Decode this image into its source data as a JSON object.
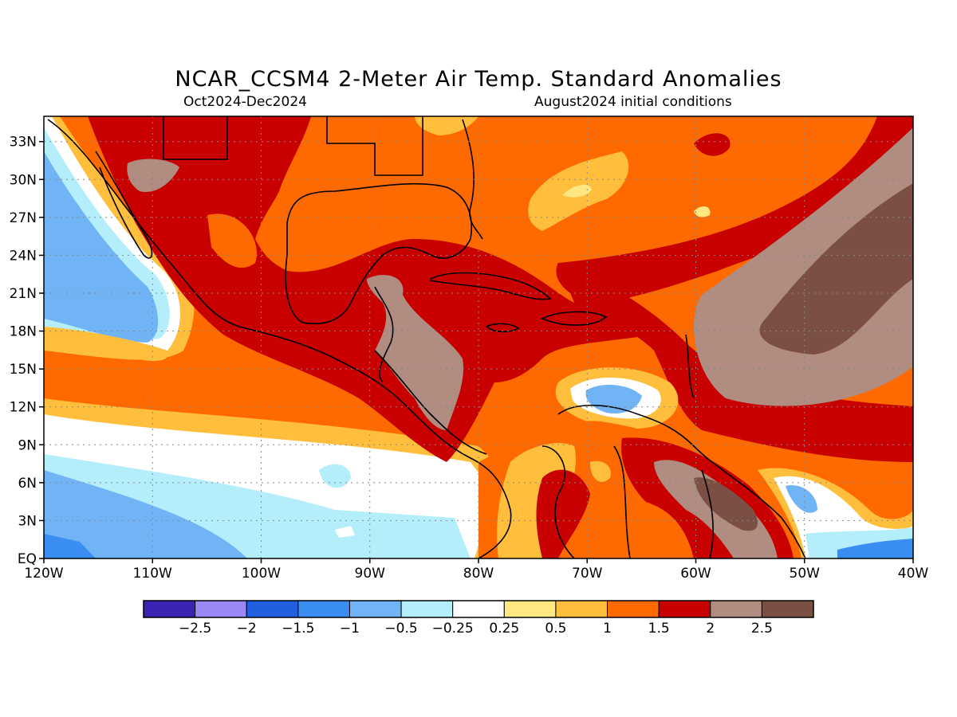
{
  "title": "NCAR_CCSM4 2-Meter Air Temp. Standard Anomalies",
  "subtitle_left": "Oct2024-Dec2024",
  "subtitle_right": "August2024 initial conditions",
  "map": {
    "lon_range": [
      -120,
      -40
    ],
    "lat_range": [
      0,
      35
    ],
    "lat_labels": [
      {
        "lat": 33,
        "text": "33N"
      },
      {
        "lat": 30,
        "text": "30N"
      },
      {
        "lat": 27,
        "text": "27N"
      },
      {
        "lat": 24,
        "text": "24N"
      },
      {
        "lat": 21,
        "text": "21N"
      },
      {
        "lat": 18,
        "text": "18N"
      },
      {
        "lat": 15,
        "text": "15N"
      },
      {
        "lat": 12,
        "text": "12N"
      },
      {
        "lat": 9,
        "text": "9N"
      },
      {
        "lat": 6,
        "text": "6N"
      },
      {
        "lat": 3,
        "text": "3N"
      },
      {
        "lat": 0,
        "text": "EQ"
      }
    ],
    "lon_labels": [
      {
        "lon": -120,
        "text": "120W"
      },
      {
        "lon": -110,
        "text": "110W"
      },
      {
        "lon": -100,
        "text": "100W"
      },
      {
        "lon": -90,
        "text": "90W"
      },
      {
        "lon": -80,
        "text": "80W"
      },
      {
        "lon": -70,
        "text": "70W"
      },
      {
        "lon": -60,
        "text": "60W"
      },
      {
        "lon": -50,
        "text": "50W"
      },
      {
        "lon": -40,
        "text": "40W"
      }
    ],
    "grid": "dotted"
  },
  "colorbar": {
    "colors": [
      "#3b22b0",
      "#9b87f5",
      "#1f5fe0",
      "#3a8ef2",
      "#70b4f5",
      "#b3eefa",
      "#ffffff",
      "#ffe882",
      "#ffbe3c",
      "#ff6a00",
      "#c80000",
      "#b08d80",
      "#7b4f43"
    ],
    "labels": [
      "-2.5",
      "-2",
      "-1.5",
      "-1",
      "-0.5",
      "-0.25",
      "0.25",
      "0.5",
      "1",
      "1.5",
      "2",
      "2.5"
    ]
  }
}
